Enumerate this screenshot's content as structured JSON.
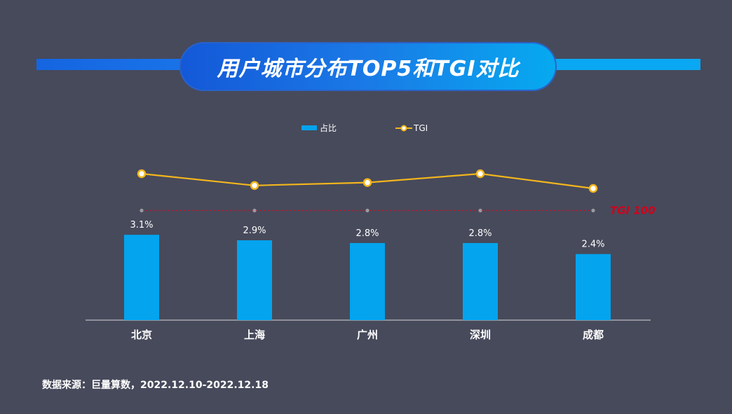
{
  "title": "用户城市分布TOP5和TGI对比",
  "source": "数据来源：巨量算数，2022.12.10-2022.12.18",
  "colors": {
    "bar": "#04a4ee",
    "line": "#f2b51c",
    "reference": "#c0152a",
    "background": "#474a5b"
  },
  "chart_data": {
    "type": "bar",
    "categories": [
      "北京",
      "上海",
      "广州",
      "深圳",
      "成都"
    ],
    "series": [
      {
        "name": "占比",
        "type": "bar",
        "values": [
          3.1,
          2.9,
          2.8,
          2.8,
          2.4
        ],
        "labels": [
          "3.1%",
          "2.9%",
          "2.8%",
          "2.8%",
          "2.4%"
        ]
      },
      {
        "name": "TGI",
        "type": "line",
        "values": [
          125,
          117,
          119,
          125,
          115
        ]
      }
    ],
    "reference_line": {
      "value": 100,
      "label": "TGI 100"
    },
    "legend": "top-center",
    "grid": false
  }
}
